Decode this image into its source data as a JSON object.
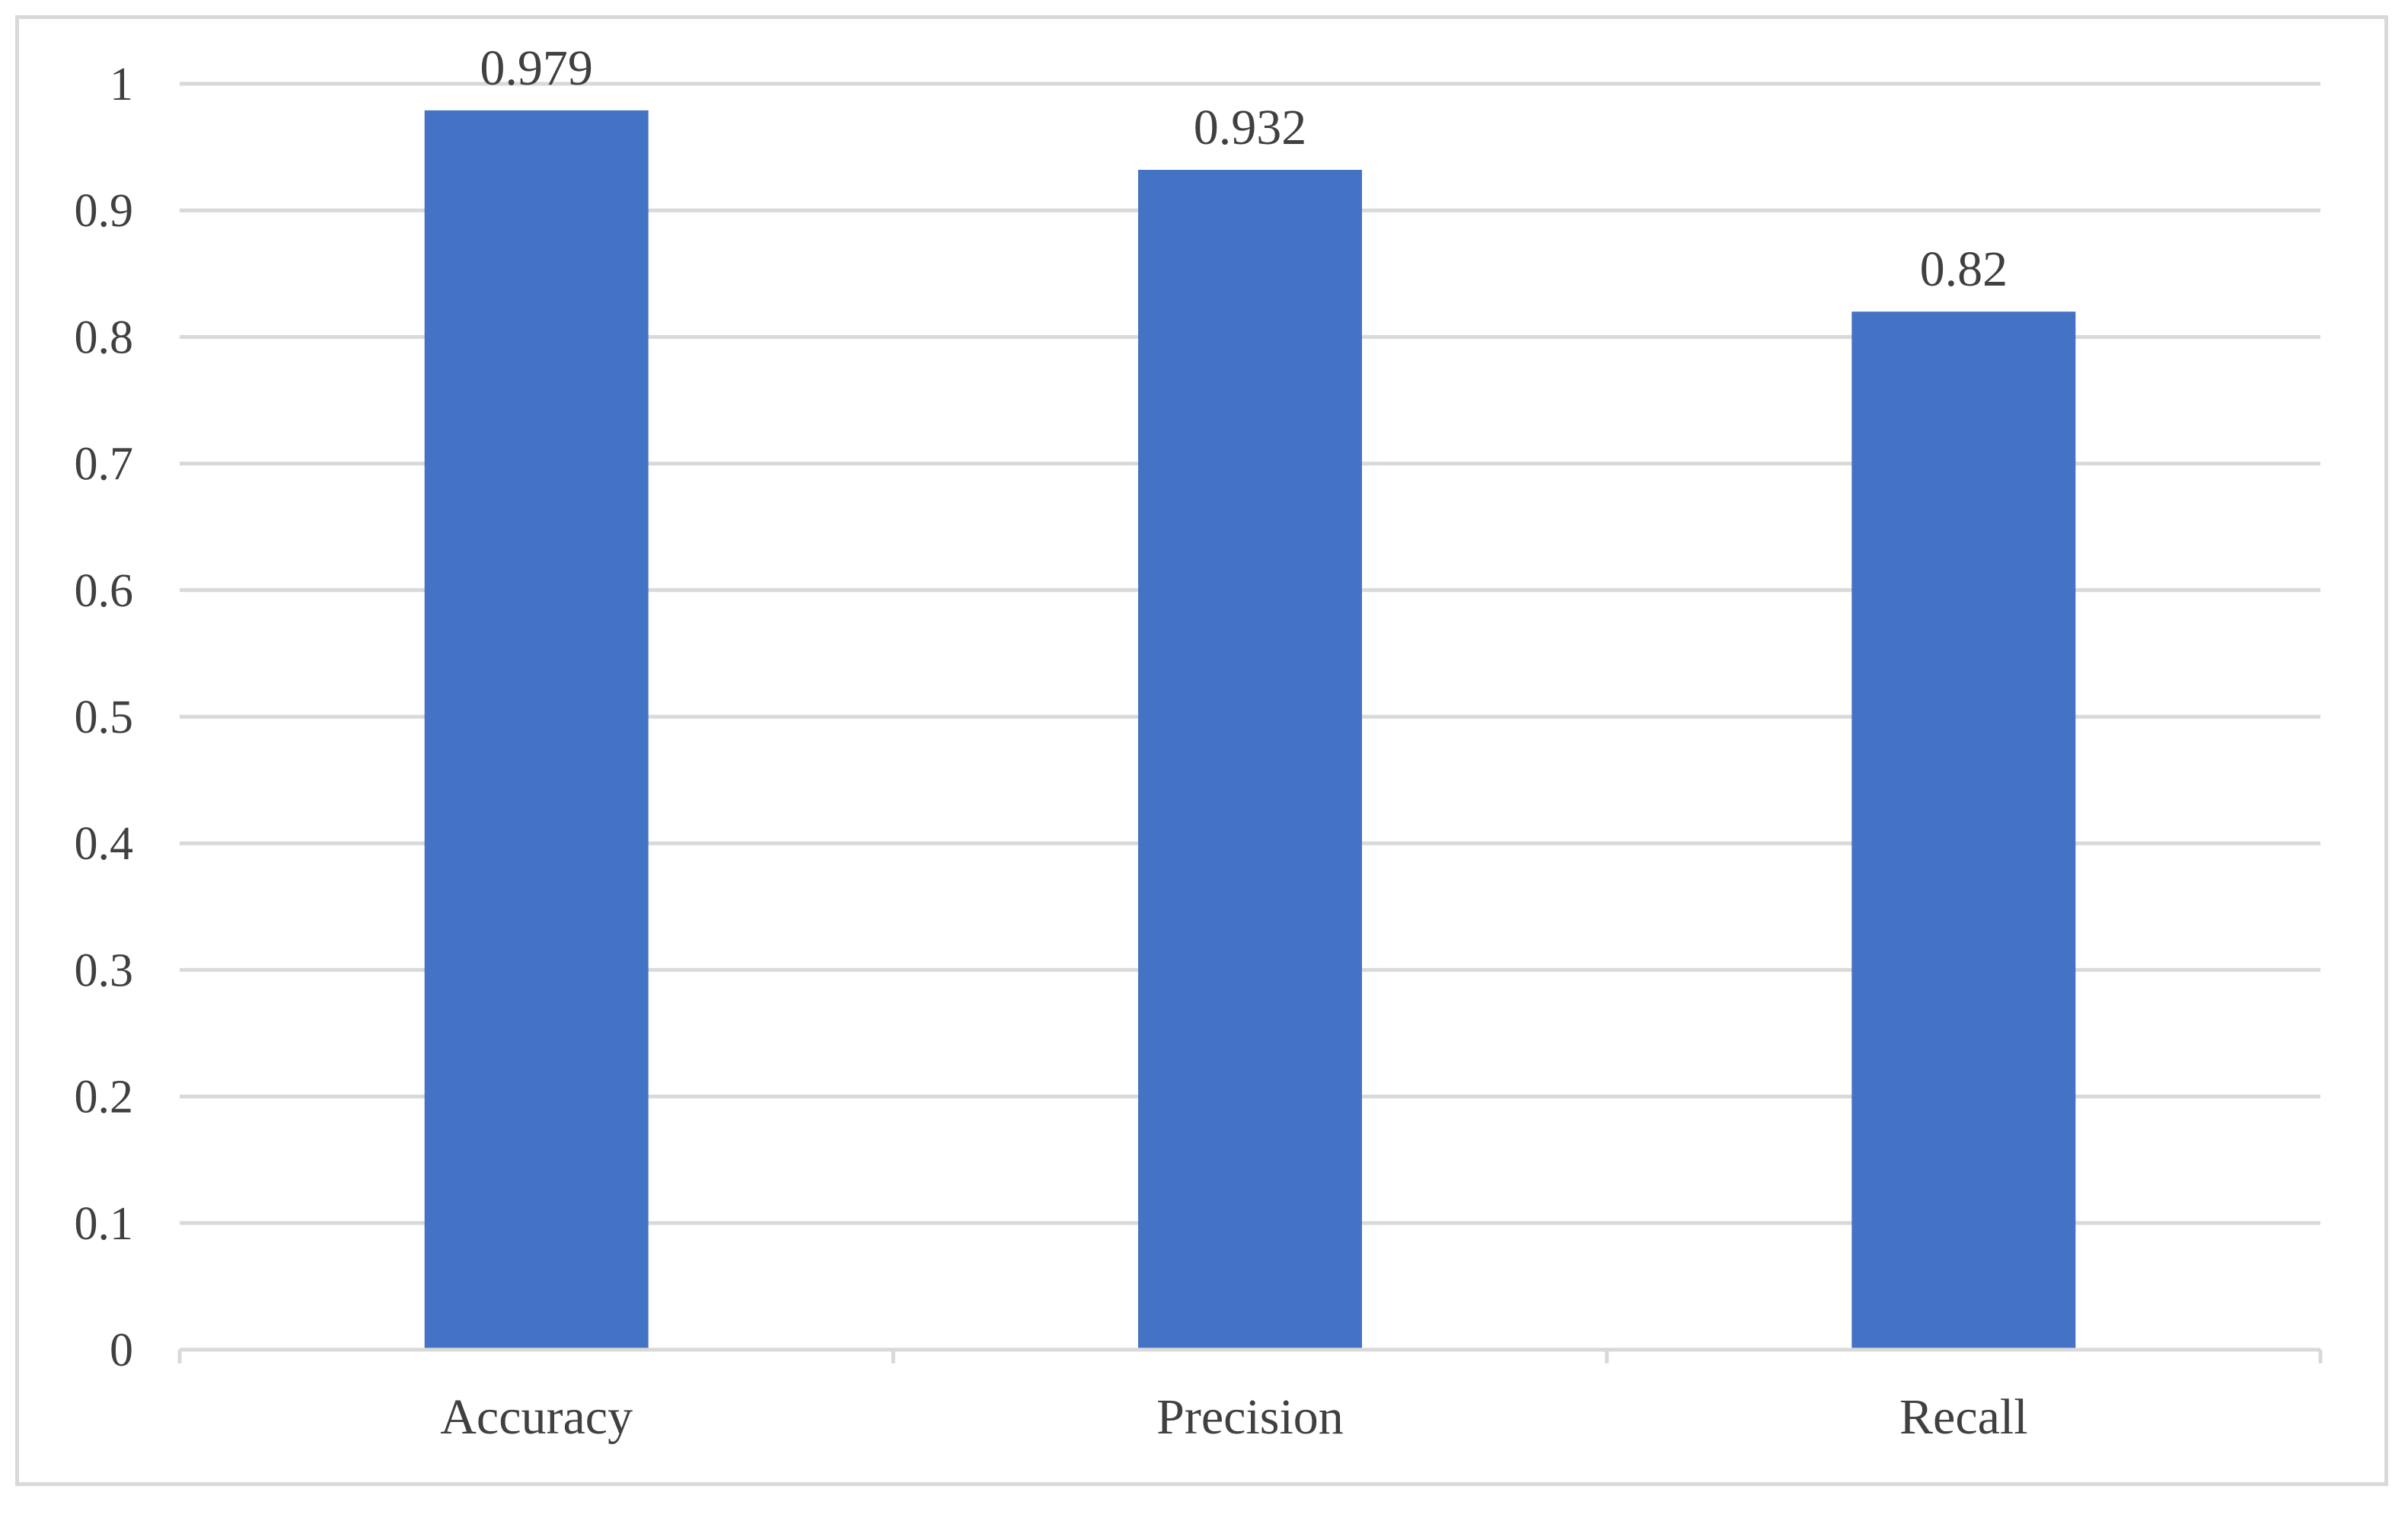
{
  "chart_data": {
    "type": "bar",
    "categories": [
      "Accuracy",
      "Precision",
      "Recall"
    ],
    "values": [
      0.979,
      0.932,
      0.82
    ],
    "data_labels": [
      "0.979",
      "0.932",
      "0.82"
    ],
    "y_ticks": [
      "0",
      "0.1",
      "0.2",
      "0.3",
      "0.4",
      "0.5",
      "0.6",
      "0.7",
      "0.8",
      "0.9",
      "1"
    ],
    "ylim": [
      0,
      1
    ],
    "title": "",
    "xlabel": "",
    "ylabel": "",
    "grid": true,
    "legend": "none",
    "colors": {
      "bar": "#4472C4",
      "grid": "#d9d9d9",
      "text": "#404040",
      "frame": "#d9d9d9"
    }
  }
}
